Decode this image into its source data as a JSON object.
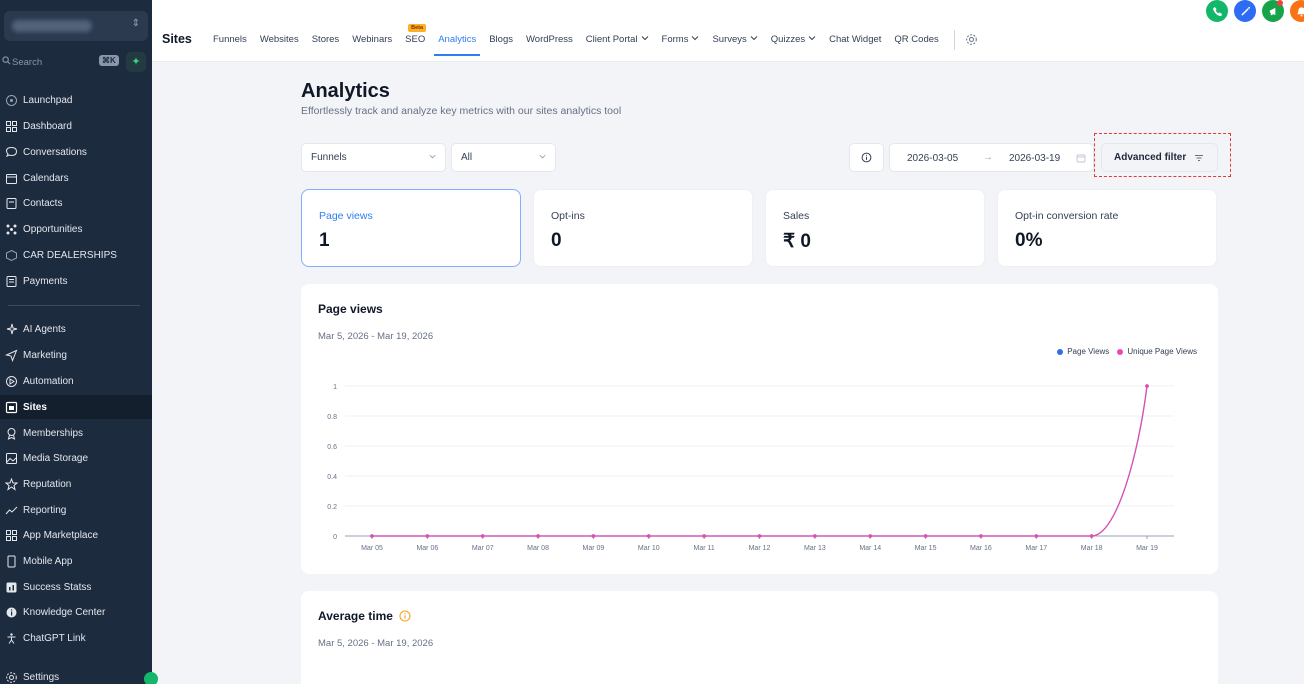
{
  "sidebar": {
    "search_placeholder": "Search",
    "search_shortcut": "⌘K",
    "items": [
      {
        "label": "Launchpad",
        "icon": "launchpad-icon"
      },
      {
        "label": "Dashboard",
        "icon": "dashboard-icon"
      },
      {
        "label": "Conversations",
        "icon": "conversations-icon"
      },
      {
        "label": "Calendars",
        "icon": "calendar-icon"
      },
      {
        "label": "Contacts",
        "icon": "contacts-icon"
      },
      {
        "label": "Opportunities",
        "icon": "opportunities-icon"
      },
      {
        "label": "CAR DEALERSHIPS",
        "icon": "cube-icon"
      },
      {
        "label": "Payments",
        "icon": "payments-icon"
      },
      {
        "label": "AI Agents",
        "icon": "sparkle-icon"
      },
      {
        "label": "Marketing",
        "icon": "send-icon"
      },
      {
        "label": "Automation",
        "icon": "automation-icon"
      },
      {
        "label": "Sites",
        "icon": "sites-icon",
        "active": true
      },
      {
        "label": "Memberships",
        "icon": "membership-icon"
      },
      {
        "label": "Media Storage",
        "icon": "media-icon"
      },
      {
        "label": "Reputation",
        "icon": "star-icon"
      },
      {
        "label": "Reporting",
        "icon": "trend-icon"
      },
      {
        "label": "App Marketplace",
        "icon": "grid-icon"
      },
      {
        "label": "Mobile App",
        "icon": "mobile-icon"
      },
      {
        "label": "Success Statss",
        "icon": "chart-square-icon"
      },
      {
        "label": "Knowledge Center",
        "icon": "info-circle-icon"
      },
      {
        "label": "ChatGPT Link",
        "icon": "accessibility-icon"
      },
      {
        "label": "Settings",
        "icon": "gear-icon"
      }
    ]
  },
  "topnav": {
    "title": "Sites",
    "beta_label": "Beta",
    "tabs": [
      {
        "label": "Funnels"
      },
      {
        "label": "Websites"
      },
      {
        "label": "Stores"
      },
      {
        "label": "Webinars"
      },
      {
        "label": "SEO",
        "beta": true
      },
      {
        "label": "Analytics",
        "active": true
      },
      {
        "label": "Blogs"
      },
      {
        "label": "WordPress"
      },
      {
        "label": "Client Portal",
        "dropdown": true
      },
      {
        "label": "Forms",
        "dropdown": true
      },
      {
        "label": "Surveys",
        "dropdown": true
      },
      {
        "label": "Quizzes",
        "dropdown": true
      },
      {
        "label": "Chat Widget"
      },
      {
        "label": "QR Codes"
      }
    ]
  },
  "main": {
    "title": "Analytics",
    "subtitle": "Effortlessly track and analyze key metrics with our sites analytics tool",
    "filter_type": "Funnels",
    "filter_item": "All",
    "date_start": "2026-03-05",
    "date_arrow": "→",
    "date_end": "2026-03-19",
    "advanced_filter": "Advanced filter"
  },
  "stats": [
    {
      "label": "Page views",
      "value": "1",
      "active": true
    },
    {
      "label": "Opt-ins",
      "value": "0"
    },
    {
      "label": "Sales",
      "value": "₹ 0"
    },
    {
      "label": "Opt-in conversion rate",
      "value": "0%"
    }
  ],
  "page_views_panel": {
    "title": "Page views",
    "date_range": "Mar 5, 2026 - Mar 19, 2026",
    "legend": [
      "Page Views",
      "Unique Page Views"
    ]
  },
  "average_time_panel": {
    "title": "Average time",
    "date_range": "Mar 5, 2026 - Mar 19, 2026"
  },
  "colors": {
    "page_views": "#2f6fed",
    "unique_page_views": "#e84bb0",
    "accent": "#2f7ff0"
  },
  "chart_data": {
    "type": "line",
    "categories": [
      "Mar 05",
      "Mar 06",
      "Mar 07",
      "Mar 08",
      "Mar 09",
      "Mar 10",
      "Mar 11",
      "Mar 12",
      "Mar 13",
      "Mar 14",
      "Mar 15",
      "Mar 16",
      "Mar 17",
      "Mar 18",
      "Mar 19"
    ],
    "series": [
      {
        "name": "Page Views",
        "values": [
          0,
          0,
          0,
          0,
          0,
          0,
          0,
          0,
          0,
          0,
          0,
          0,
          0,
          0,
          1
        ]
      },
      {
        "name": "Unique Page Views",
        "values": [
          0,
          0,
          0,
          0,
          0,
          0,
          0,
          0,
          0,
          0,
          0,
          0,
          0,
          0,
          1
        ]
      }
    ],
    "yticks": [
      "0",
      "0.2",
      "0.4",
      "0.6",
      "0.8",
      "1"
    ],
    "ylim": [
      0,
      1
    ],
    "grid": true,
    "legend_position": "top-right"
  }
}
